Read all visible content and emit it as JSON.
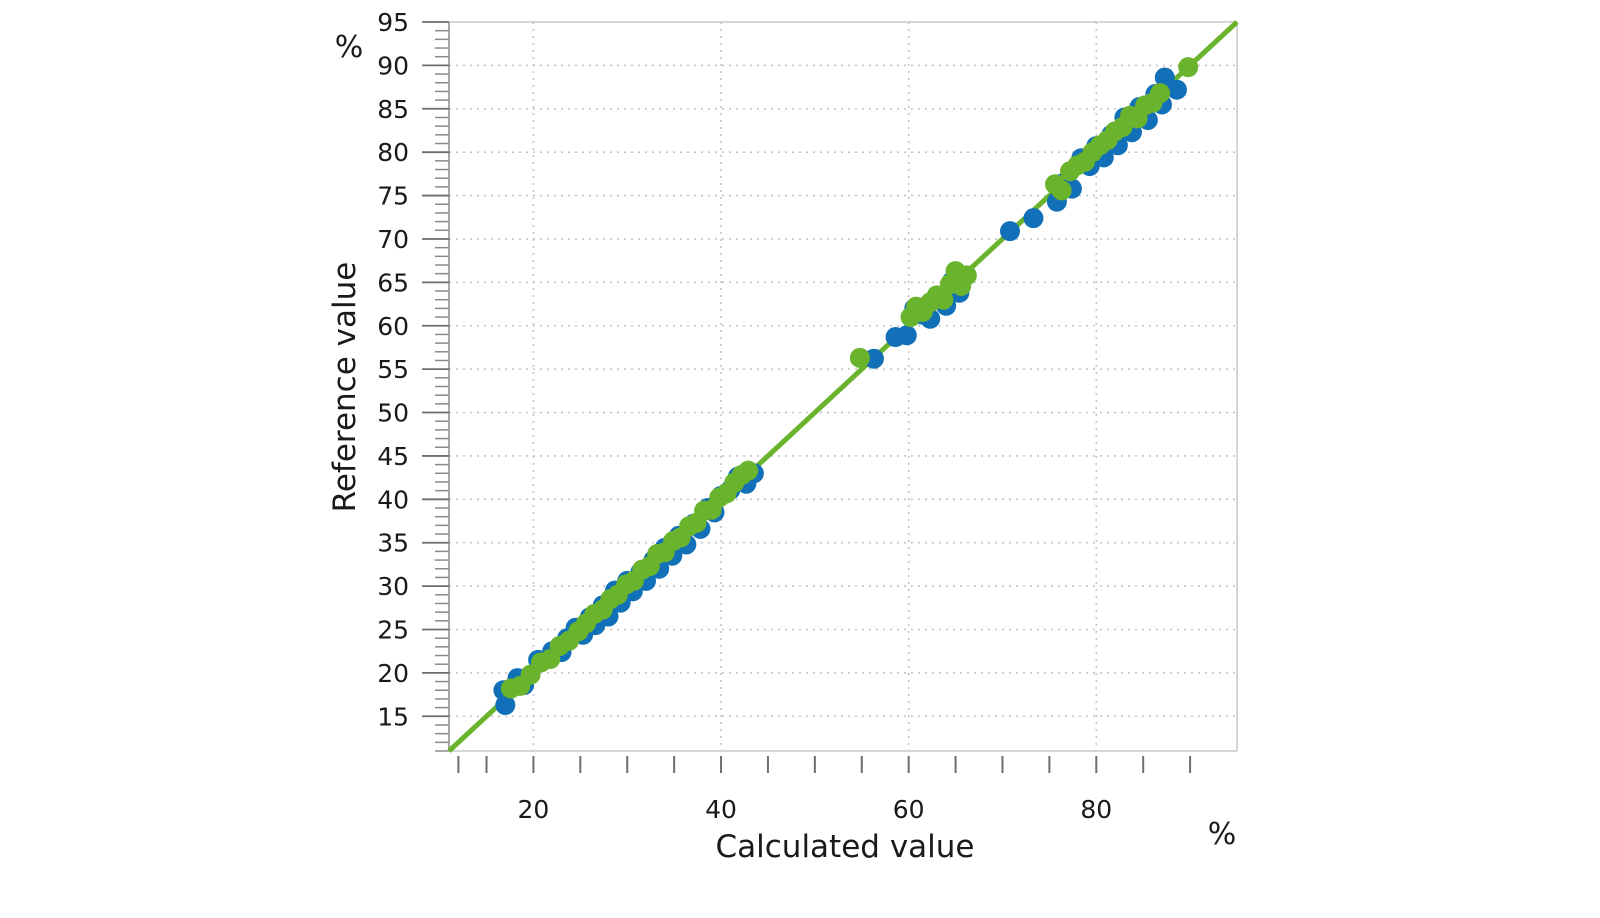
{
  "chart_data": {
    "type": "scatter",
    "title": "",
    "xlabel": "Calculated value",
    "ylabel": "Reference value",
    "x_unit": "%",
    "y_unit": "%",
    "xlim": [
      11,
      95
    ],
    "ylim": [
      11,
      95
    ],
    "x_ticks": [
      20,
      40,
      60,
      80
    ],
    "y_ticks": [
      15,
      20,
      25,
      30,
      35,
      40,
      45,
      50,
      55,
      60,
      65,
      70,
      75,
      80,
      85,
      90,
      95
    ],
    "grid": true,
    "legend": "none",
    "fit_line": {
      "color": "#6ab42d",
      "from": [
        11,
        11
      ],
      "to": [
        95,
        95
      ]
    },
    "series": [
      {
        "color": "#1170b8",
        "points": [
          [
            16.8,
            18.0
          ],
          [
            17.0,
            16.3
          ],
          [
            18.3,
            19.4
          ],
          [
            19.0,
            18.6
          ],
          [
            20.5,
            21.5
          ],
          [
            22.0,
            22.5
          ],
          [
            23.0,
            22.4
          ],
          [
            23.6,
            24.0
          ],
          [
            24.5,
            25.2
          ],
          [
            25.3,
            24.4
          ],
          [
            26.0,
            26.4
          ],
          [
            26.6,
            25.5
          ],
          [
            27.4,
            27.8
          ],
          [
            28.0,
            26.5
          ],
          [
            28.7,
            29.5
          ],
          [
            29.3,
            28.1
          ],
          [
            30.0,
            30.6
          ],
          [
            30.6,
            29.4
          ],
          [
            31.4,
            31.6
          ],
          [
            32.0,
            30.6
          ],
          [
            32.8,
            33.0
          ],
          [
            33.4,
            32.0
          ],
          [
            34.0,
            34.4
          ],
          [
            34.8,
            33.5
          ],
          [
            35.5,
            35.8
          ],
          [
            36.3,
            34.8
          ],
          [
            37.1,
            37.2
          ],
          [
            37.8,
            36.6
          ],
          [
            38.6,
            39.0
          ],
          [
            39.3,
            38.5
          ],
          [
            40.0,
            40.4
          ],
          [
            41.0,
            41.1
          ],
          [
            41.8,
            42.6
          ],
          [
            42.7,
            41.8
          ],
          [
            43.5,
            43.0
          ],
          [
            56.3,
            56.2
          ],
          [
            58.6,
            58.7
          ],
          [
            59.8,
            58.9
          ],
          [
            60.6,
            62.0
          ],
          [
            61.4,
            61.3
          ],
          [
            62.3,
            60.8
          ],
          [
            63.0,
            63.4
          ],
          [
            64.0,
            62.3
          ],
          [
            64.6,
            65.1
          ],
          [
            65.4,
            63.8
          ],
          [
            70.8,
            70.9
          ],
          [
            73.3,
            72.4
          ],
          [
            75.8,
            74.3
          ],
          [
            76.4,
            76.4
          ],
          [
            77.4,
            75.8
          ],
          [
            78.4,
            79.3
          ],
          [
            79.3,
            78.4
          ],
          [
            80.0,
            80.7
          ],
          [
            80.8,
            79.4
          ],
          [
            81.6,
            82.0
          ],
          [
            82.3,
            80.8
          ],
          [
            83.0,
            84.0
          ],
          [
            83.8,
            82.3
          ],
          [
            84.6,
            85.2
          ],
          [
            85.5,
            83.7
          ],
          [
            86.3,
            86.7
          ],
          [
            87.0,
            85.5
          ],
          [
            87.3,
            88.6
          ],
          [
            88.6,
            87.2
          ]
        ]
      },
      {
        "color": "#6ab42d",
        "points": [
          [
            17.6,
            18.2
          ],
          [
            18.6,
            18.5
          ],
          [
            19.7,
            19.8
          ],
          [
            20.8,
            21.2
          ],
          [
            21.8,
            21.6
          ],
          [
            22.8,
            23.1
          ],
          [
            23.8,
            23.7
          ],
          [
            24.8,
            24.8
          ],
          [
            25.6,
            25.7
          ],
          [
            26.5,
            26.8
          ],
          [
            27.4,
            27.3
          ],
          [
            28.2,
            28.5
          ],
          [
            29.0,
            29.0
          ],
          [
            29.9,
            30.2
          ],
          [
            30.7,
            30.6
          ],
          [
            31.6,
            31.9
          ],
          [
            32.4,
            32.3
          ],
          [
            33.2,
            33.7
          ],
          [
            34.0,
            33.9
          ],
          [
            34.9,
            35.2
          ],
          [
            35.7,
            35.6
          ],
          [
            36.6,
            36.9
          ],
          [
            37.4,
            37.3
          ],
          [
            38.2,
            38.7
          ],
          [
            39.0,
            38.8
          ],
          [
            39.8,
            40.2
          ],
          [
            40.6,
            40.7
          ],
          [
            41.4,
            41.9
          ],
          [
            42.2,
            42.8
          ],
          [
            42.9,
            43.3
          ],
          [
            54.8,
            56.3
          ],
          [
            60.2,
            61.0
          ],
          [
            60.8,
            62.2
          ],
          [
            61.5,
            61.6
          ],
          [
            62.3,
            62.7
          ],
          [
            63.0,
            63.5
          ],
          [
            63.7,
            63.0
          ],
          [
            64.4,
            64.8
          ],
          [
            65.0,
            66.3
          ],
          [
            65.6,
            64.6
          ],
          [
            66.2,
            65.8
          ],
          [
            75.6,
            76.3
          ],
          [
            76.3,
            75.6
          ],
          [
            77.2,
            77.8
          ],
          [
            78.0,
            78.5
          ],
          [
            78.8,
            78.9
          ],
          [
            79.6,
            80.0
          ],
          [
            80.4,
            80.8
          ],
          [
            81.2,
            81.4
          ],
          [
            82.0,
            82.4
          ],
          [
            82.8,
            82.9
          ],
          [
            83.6,
            84.2
          ],
          [
            84.4,
            83.9
          ],
          [
            85.2,
            85.4
          ],
          [
            86.0,
            85.7
          ],
          [
            86.8,
            86.8
          ],
          [
            89.8,
            89.8
          ]
        ]
      }
    ]
  }
}
